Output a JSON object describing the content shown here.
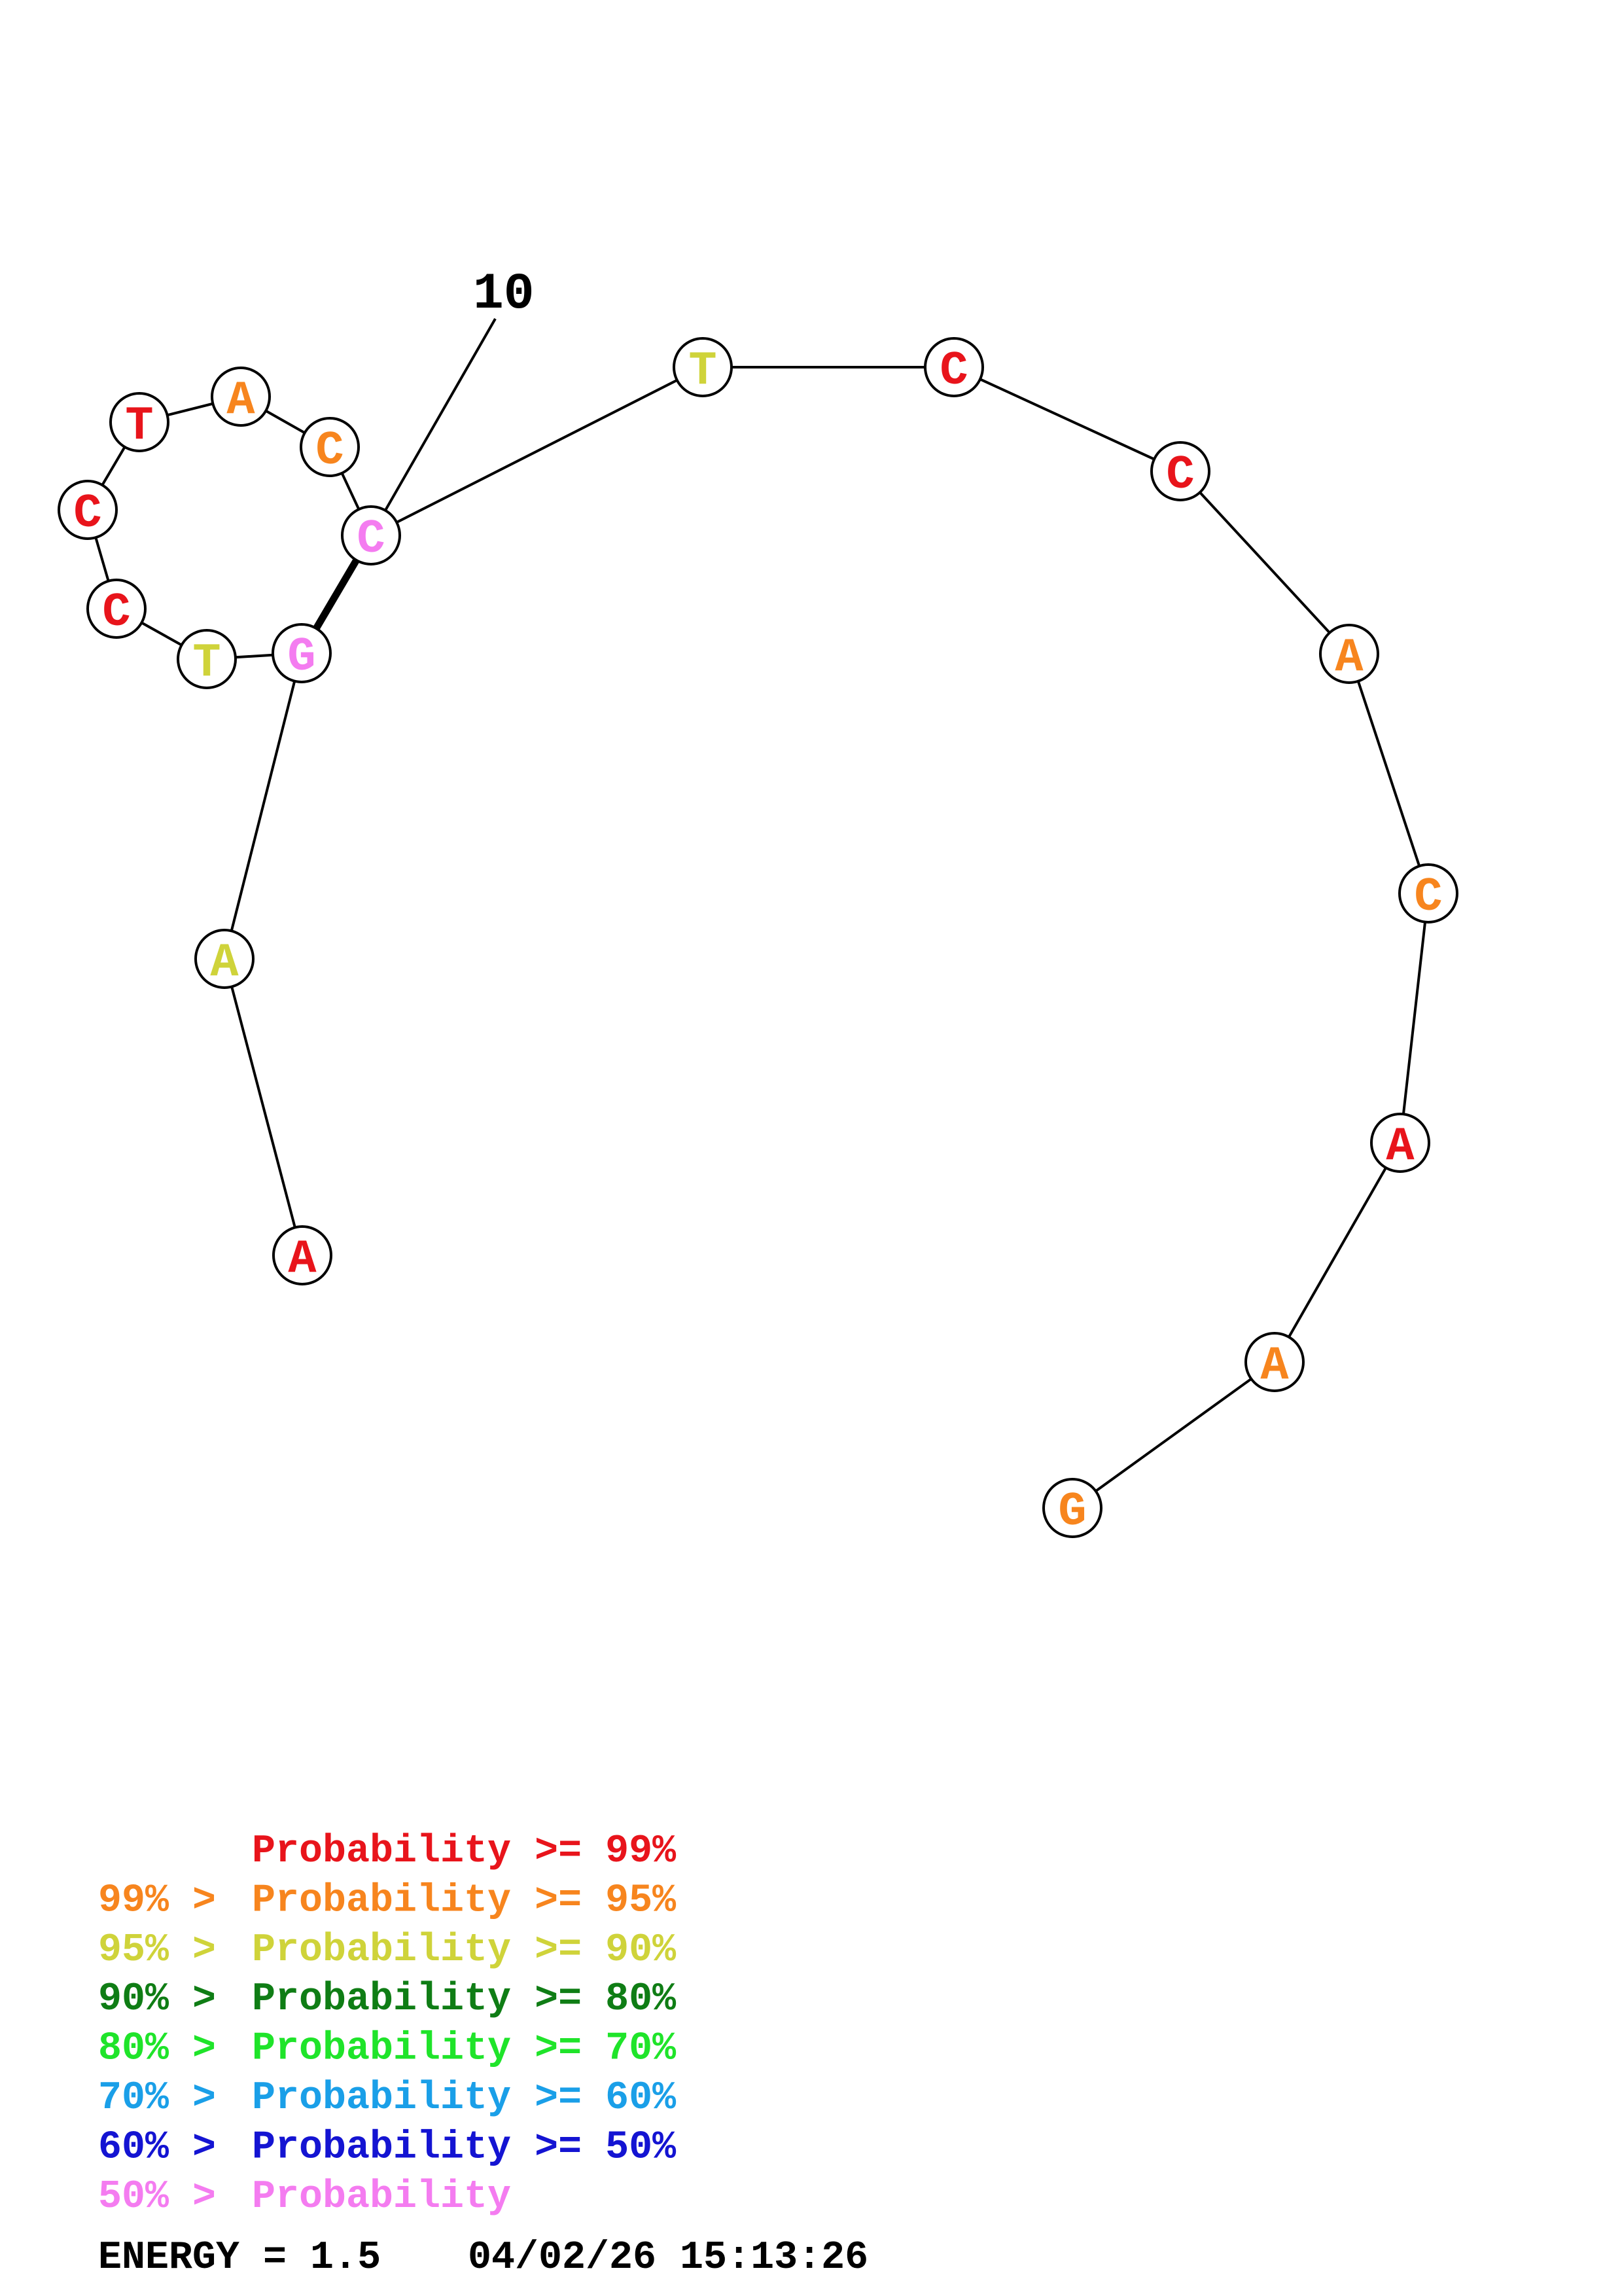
{
  "structure": {
    "sequence": [
      "A",
      "A",
      "G",
      "T",
      "C",
      "C",
      "T",
      "A",
      "C",
      "C",
      "T",
      "C",
      "C",
      "A",
      "C",
      "A",
      "A",
      "G"
    ],
    "colors": [
      "red",
      "yellow",
      "pink",
      "yellow",
      "red",
      "red",
      "red",
      "orange",
      "orange",
      "pink",
      "yellow",
      "red",
      "red",
      "orange",
      "orange",
      "red",
      "orange",
      "orange"
    ],
    "pairs": [
      [
        2,
        9
      ]
    ],
    "number_label": "10",
    "label_index": 9
  },
  "palette": {
    "red": "#e8141b",
    "orange": "#f7851e",
    "yellow": "#cfd33a",
    "darkgreen": "#0f7d15",
    "green": "#1fe42a",
    "cyan": "#1a9fe8",
    "blue": "#1414d2",
    "pink": "#f47cf0"
  },
  "legend": [
    {
      "prefix": "",
      "main": "Probability >= 99%",
      "color": "red"
    },
    {
      "prefix": "99% > ",
      "main": "Probability >= 95%",
      "color": "orange"
    },
    {
      "prefix": "95% > ",
      "main": "Probability >= 90%",
      "color": "yellow"
    },
    {
      "prefix": "90% > ",
      "main": "Probability >= 80%",
      "color": "darkgreen"
    },
    {
      "prefix": "80% > ",
      "main": "Probability >= 70%",
      "color": "green"
    },
    {
      "prefix": "70% > ",
      "main": "Probability >= 60%",
      "color": "cyan"
    },
    {
      "prefix": "60% > ",
      "main": "Probability >= 50%",
      "color": "blue"
    },
    {
      "prefix": "50% > ",
      "main": "Probability",
      "color": "pink"
    }
  ],
  "footer": {
    "energy": "ENERGY = 1.5",
    "timestamp": "04/02/26 15:13:26"
  }
}
